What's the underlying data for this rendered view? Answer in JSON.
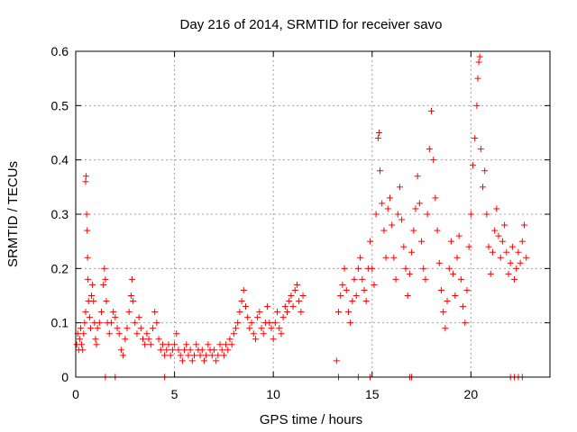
{
  "chart_data": {
    "type": "scatter",
    "title": "Day 216 of 2014, SRMTID for receiver savo",
    "xlabel": "GPS time / hours",
    "ylabel": "SRMTID / TECUs",
    "xlim": [
      0,
      24
    ],
    "ylim": [
      0,
      0.6
    ],
    "x_ticks": [
      0,
      5,
      10,
      15,
      20
    ],
    "y_ticks": [
      0,
      0.1,
      0.2,
      0.3,
      0.4,
      0.5,
      0.6
    ],
    "x_tick_labels": [
      "0",
      "5",
      "10",
      "15",
      "20"
    ],
    "y_tick_labels": [
      "0",
      "0.1",
      "0.2",
      "0.3",
      "0.4",
      "0.5",
      "0.6"
    ],
    "grid": true,
    "marker": "+",
    "series": [
      {
        "name": "savo",
        "color": "#ff0000",
        "points": [
          [
            0.05,
            0.06
          ],
          [
            0.1,
            0.08
          ],
          [
            0.15,
            0.05
          ],
          [
            0.2,
            0.07
          ],
          [
            0.25,
            0.09
          ],
          [
            0.3,
            0.06
          ],
          [
            0.35,
            0.05
          ],
          [
            0.4,
            0.08
          ],
          [
            0.45,
            0.1
          ],
          [
            0.5,
            0.12
          ],
          [
            0.5,
            0.36
          ],
          [
            0.52,
            0.37
          ],
          [
            0.55,
            0.3
          ],
          [
            0.58,
            0.27
          ],
          [
            0.6,
            0.22
          ],
          [
            0.62,
            0.18
          ],
          [
            0.65,
            0.14
          ],
          [
            0.7,
            0.11
          ],
          [
            0.75,
            0.09
          ],
          [
            0.8,
            0.15
          ],
          [
            0.85,
            0.17
          ],
          [
            0.9,
            0.14
          ],
          [
            0.95,
            0.1
          ],
          [
            1.0,
            0.07
          ],
          [
            1.05,
            0.06
          ],
          [
            1.1,
            0.09
          ],
          [
            1.2,
            0.1
          ],
          [
            1.3,
            0.12
          ],
          [
            1.4,
            0.17
          ],
          [
            1.45,
            0.2
          ],
          [
            1.5,
            0.18
          ],
          [
            1.55,
            0.14
          ],
          [
            1.6,
            0.1
          ],
          [
            1.7,
            0.08
          ],
          [
            1.8,
            0.1
          ],
          [
            1.9,
            0.12
          ],
          [
            2.0,
            0.11
          ],
          [
            2.1,
            0.09
          ],
          [
            2.2,
            0.08
          ],
          [
            2.3,
            0.05
          ],
          [
            2.4,
            0.04
          ],
          [
            2.5,
            0.07
          ],
          [
            2.6,
            0.09
          ],
          [
            2.7,
            0.12
          ],
          [
            2.8,
            0.15
          ],
          [
            2.85,
            0.18
          ],
          [
            2.9,
            0.14
          ],
          [
            3.0,
            0.1
          ],
          [
            3.1,
            0.08
          ],
          [
            3.2,
            0.11
          ],
          [
            3.3,
            0.09
          ],
          [
            3.4,
            0.07
          ],
          [
            3.5,
            0.06
          ],
          [
            3.6,
            0.08
          ],
          [
            3.7,
            0.07
          ],
          [
            3.8,
            0.06
          ],
          [
            3.9,
            0.09
          ],
          [
            4.0,
            0.12
          ],
          [
            4.1,
            0.1
          ],
          [
            4.2,
            0.07
          ],
          [
            4.3,
            0.05
          ],
          [
            4.4,
            0.06
          ],
          [
            4.5,
            0.04
          ],
          [
            4.6,
            0.05
          ],
          [
            4.7,
            0.06
          ],
          [
            4.8,
            0.04
          ],
          [
            4.9,
            0.05
          ],
          [
            5.0,
            0.06
          ],
          [
            5.1,
            0.08
          ],
          [
            5.2,
            0.05
          ],
          [
            5.3,
            0.04
          ],
          [
            5.4,
            0.03
          ],
          [
            5.5,
            0.05
          ],
          [
            5.6,
            0.06
          ],
          [
            5.7,
            0.04
          ],
          [
            5.8,
            0.05
          ],
          [
            5.9,
            0.03
          ],
          [
            6.0,
            0.04
          ],
          [
            6.1,
            0.06
          ],
          [
            6.2,
            0.05
          ],
          [
            6.3,
            0.04
          ],
          [
            6.4,
            0.05
          ],
          [
            6.5,
            0.03
          ],
          [
            6.6,
            0.04
          ],
          [
            6.7,
            0.06
          ],
          [
            6.8,
            0.05
          ],
          [
            6.9,
            0.04
          ],
          [
            7.0,
            0.05
          ],
          [
            7.1,
            0.03
          ],
          [
            7.2,
            0.04
          ],
          [
            7.3,
            0.06
          ],
          [
            7.4,
            0.05
          ],
          [
            7.5,
            0.04
          ],
          [
            7.6,
            0.06
          ],
          [
            7.7,
            0.05
          ],
          [
            7.8,
            0.07
          ],
          [
            7.9,
            0.06
          ],
          [
            8.0,
            0.08
          ],
          [
            8.1,
            0.09
          ],
          [
            8.2,
            0.1
          ],
          [
            8.3,
            0.12
          ],
          [
            8.4,
            0.14
          ],
          [
            8.5,
            0.16
          ],
          [
            8.6,
            0.13
          ],
          [
            8.7,
            0.11
          ],
          [
            8.8,
            0.09
          ],
          [
            8.9,
            0.1
          ],
          [
            9.0,
            0.08
          ],
          [
            9.1,
            0.07
          ],
          [
            9.2,
            0.11
          ],
          [
            9.3,
            0.12
          ],
          [
            9.4,
            0.09
          ],
          [
            9.5,
            0.08
          ],
          [
            9.6,
            0.1
          ],
          [
            9.7,
            0.13
          ],
          [
            9.8,
            0.1
          ],
          [
            9.9,
            0.09
          ],
          [
            10.0,
            0.07
          ],
          [
            10.1,
            0.1
          ],
          [
            10.2,
            0.12
          ],
          [
            10.3,
            0.09
          ],
          [
            10.4,
            0.08
          ],
          [
            10.5,
            0.11
          ],
          [
            10.6,
            0.13
          ],
          [
            10.7,
            0.12
          ],
          [
            10.8,
            0.14
          ],
          [
            10.9,
            0.15
          ],
          [
            11.0,
            0.13
          ],
          [
            11.1,
            0.16
          ],
          [
            11.2,
            0.17
          ],
          [
            11.3,
            0.14
          ],
          [
            11.4,
            0.12
          ],
          [
            11.5,
            0.15
          ],
          [
            13.2,
            0.03
          ],
          [
            13.3,
            0.12
          ],
          [
            13.4,
            0.15
          ],
          [
            13.5,
            0.17
          ],
          [
            13.6,
            0.2
          ],
          [
            13.7,
            0.16
          ],
          [
            13.8,
            0.12
          ],
          [
            13.9,
            0.1
          ],
          [
            14.0,
            0.14
          ],
          [
            14.1,
            0.18
          ],
          [
            14.2,
            0.15
          ],
          [
            14.3,
            0.2
          ],
          [
            14.4,
            0.22
          ],
          [
            14.5,
            0.18
          ],
          [
            14.6,
            0.16
          ],
          [
            14.7,
            0.14
          ],
          [
            14.8,
            0.2
          ],
          [
            14.9,
            0.25
          ],
          [
            15.0,
            0.2
          ],
          [
            15.1,
            0.17
          ],
          [
            15.2,
            0.3
          ],
          [
            15.3,
            0.44
          ],
          [
            15.35,
            0.45
          ],
          [
            15.4,
            0.38
          ],
          [
            15.5,
            0.32
          ],
          [
            15.6,
            0.27
          ],
          [
            15.7,
            0.22
          ],
          [
            15.8,
            0.31
          ],
          [
            15.9,
            0.33
          ],
          [
            16.0,
            0.28
          ],
          [
            16.1,
            0.22
          ],
          [
            16.2,
            0.18
          ],
          [
            16.3,
            0.3
          ],
          [
            16.4,
            0.35
          ],
          [
            16.5,
            0.29
          ],
          [
            16.6,
            0.24
          ],
          [
            16.7,
            0.2
          ],
          [
            16.8,
            0.15
          ],
          [
            16.9,
            0.19
          ],
          [
            17.0,
            0.23
          ],
          [
            17.1,
            0.27
          ],
          [
            17.2,
            0.31
          ],
          [
            17.3,
            0.37
          ],
          [
            17.4,
            0.32
          ],
          [
            17.5,
            0.25
          ],
          [
            17.6,
            0.2
          ],
          [
            17.7,
            0.18
          ],
          [
            17.8,
            0.3
          ],
          [
            17.9,
            0.42
          ],
          [
            18.0,
            0.49
          ],
          [
            18.1,
            0.4
          ],
          [
            18.2,
            0.33
          ],
          [
            18.3,
            0.27
          ],
          [
            18.4,
            0.21
          ],
          [
            18.5,
            0.16
          ],
          [
            18.6,
            0.12
          ],
          [
            18.7,
            0.09
          ],
          [
            18.8,
            0.14
          ],
          [
            18.9,
            0.2
          ],
          [
            19.0,
            0.25
          ],
          [
            19.1,
            0.19
          ],
          [
            19.2,
            0.15
          ],
          [
            19.3,
            0.22
          ],
          [
            19.4,
            0.26
          ],
          [
            19.5,
            0.18
          ],
          [
            19.6,
            0.13
          ],
          [
            19.7,
            0.1
          ],
          [
            19.8,
            0.16
          ],
          [
            19.9,
            0.24
          ],
          [
            20.0,
            0.3
          ],
          [
            20.1,
            0.39
          ],
          [
            20.2,
            0.44
          ],
          [
            20.3,
            0.5
          ],
          [
            20.35,
            0.55
          ],
          [
            20.4,
            0.58
          ],
          [
            20.45,
            0.59
          ],
          [
            20.5,
            0.42
          ],
          [
            20.6,
            0.35
          ],
          [
            20.7,
            0.38
          ],
          [
            20.8,
            0.3
          ],
          [
            20.9,
            0.24
          ],
          [
            21.0,
            0.19
          ],
          [
            21.1,
            0.23
          ],
          [
            21.2,
            0.27
          ],
          [
            21.3,
            0.31
          ],
          [
            21.4,
            0.26
          ],
          [
            21.5,
            0.22
          ],
          [
            21.6,
            0.25
          ],
          [
            21.7,
            0.28
          ],
          [
            21.8,
            0.23
          ],
          [
            21.9,
            0.19
          ],
          [
            22.0,
            0.21
          ],
          [
            22.1,
            0.24
          ],
          [
            22.2,
            0.18
          ],
          [
            22.3,
            0.2
          ],
          [
            22.4,
            0.23
          ],
          [
            22.5,
            0.21
          ],
          [
            22.6,
            0.25
          ],
          [
            22.7,
            0.28
          ],
          [
            22.8,
            0.22
          ],
          [
            1.5,
            0.0
          ],
          [
            2.0,
            0.0
          ],
          [
            4.5,
            0.0
          ],
          [
            13.3,
            0.0
          ],
          [
            14.3,
            0.0
          ],
          [
            14.9,
            0.0
          ],
          [
            16.9,
            0.0
          ],
          [
            17.0,
            0.0
          ],
          [
            22.0,
            0.0
          ],
          [
            22.2,
            0.0
          ],
          [
            22.4,
            0.0
          ],
          [
            22.6,
            0.0
          ]
        ]
      }
    ]
  }
}
